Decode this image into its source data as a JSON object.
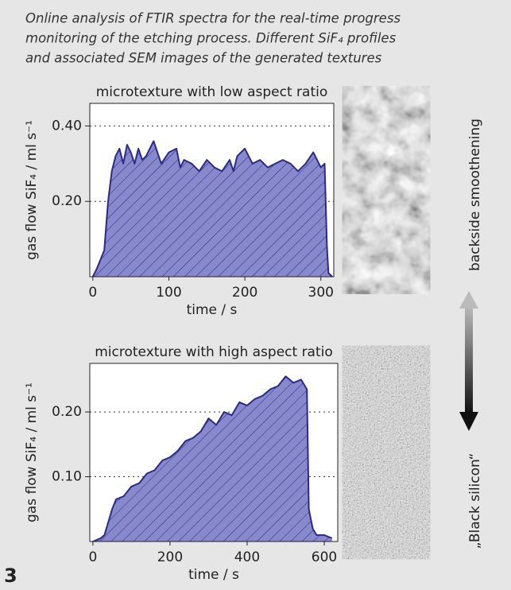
{
  "caption": [
    "Online analysis of FTIR spectra for the real-time progress",
    "monitoring of the etching process. Different SiF₄ profiles",
    "and associated SEM images of the generated textures"
  ],
  "figure_number": "3",
  "side_labels": {
    "top": "backside smoothening",
    "bottom": "„Black silicon“"
  },
  "chart_data": [
    {
      "type": "area",
      "title": "microtexture with low aspect ratio",
      "xlabel": "time / s",
      "ylabel": "gas flow SiF₄ / ml s⁻¹",
      "x": [
        0,
        5,
        15,
        20,
        25,
        30,
        35,
        40,
        45,
        50,
        55,
        60,
        65,
        70,
        80,
        90,
        100,
        110,
        115,
        120,
        130,
        140,
        150,
        160,
        170,
        180,
        185,
        190,
        200,
        210,
        220,
        230,
        240,
        250,
        260,
        270,
        280,
        290,
        295,
        300,
        305,
        308,
        310,
        315
      ],
      "series": [
        {
          "color": "#8888cc",
          "values": [
            0,
            0.02,
            0.07,
            0.2,
            0.28,
            0.32,
            0.34,
            0.3,
            0.35,
            0.33,
            0.3,
            0.34,
            0.31,
            0.32,
            0.36,
            0.3,
            0.33,
            0.34,
            0.29,
            0.31,
            0.3,
            0.28,
            0.31,
            0.29,
            0.28,
            0.31,
            0.28,
            0.32,
            0.34,
            0.3,
            0.31,
            0.29,
            0.3,
            0.31,
            0.3,
            0.28,
            0.3,
            0.33,
            0.31,
            0.29,
            0.3,
            0.08,
            0.01,
            0
          ]
        }
      ],
      "xlim": [
        -4,
        317
      ],
      "ylim": [
        0,
        0.46
      ],
      "xticks": [
        0,
        100,
        200,
        300
      ],
      "yticks": [
        {
          "value": 0.2,
          "label": "0.20"
        },
        {
          "value": 0.4,
          "label": "0.40"
        }
      ],
      "grid": true
    },
    {
      "type": "area",
      "title": "microtexture with high aspect ratio",
      "xlabel": "time / s",
      "ylabel": "gas flow SiF₄ / ml s⁻¹",
      "x": [
        0,
        20,
        30,
        40,
        50,
        60,
        80,
        100,
        120,
        140,
        160,
        180,
        200,
        220,
        240,
        260,
        280,
        300,
        320,
        340,
        360,
        380,
        400,
        420,
        440,
        460,
        480,
        500,
        520,
        540,
        555,
        560,
        570,
        580,
        600,
        620
      ],
      "series": [
        {
          "color": "#8888cc",
          "values": [
            0,
            0.005,
            0.01,
            0.03,
            0.05,
            0.065,
            0.07,
            0.085,
            0.09,
            0.105,
            0.11,
            0.125,
            0.13,
            0.14,
            0.155,
            0.16,
            0.17,
            0.19,
            0.18,
            0.2,
            0.195,
            0.215,
            0.21,
            0.22,
            0.225,
            0.235,
            0.24,
            0.255,
            0.245,
            0.25,
            0.235,
            0.05,
            0.02,
            0.01,
            0.01,
            0.005
          ]
        }
      ],
      "xlim": [
        -8,
        635
      ],
      "ylim": [
        0,
        0.275
      ],
      "xticks": [
        0,
        200,
        400,
        600
      ],
      "yticks": [
        {
          "value": 0.1,
          "label": "0.10"
        },
        {
          "value": 0.2,
          "label": "0.20"
        }
      ],
      "grid": true
    }
  ]
}
